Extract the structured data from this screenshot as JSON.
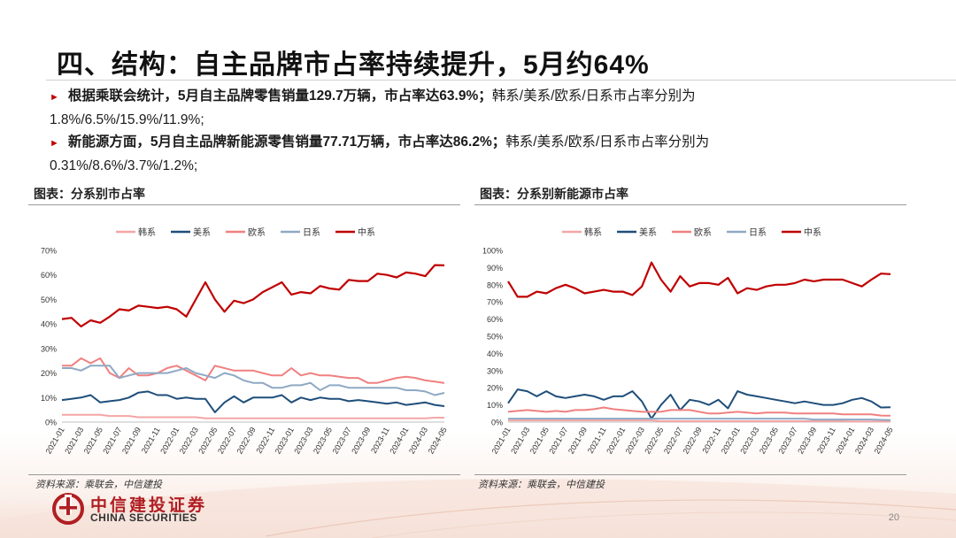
{
  "title": "四、结构：自主品牌市占率持续提升，5月约64%",
  "bullets": [
    {
      "bold": "根据乘联会统计，5月自主品牌零售销量129.7万辆，市占率达63.9%；",
      "normal_1": "韩系/美系/欧系/日系市占率分别为",
      "normal_2": "1.8%/6.5%/15.9%/11.9%;"
    },
    {
      "bold": "新能源方面，5月自主品牌新能源零售销量77.71万辆，市占率达86.2%；",
      "normal_1": "韩系/美系/欧系/日系市占率分别为",
      "normal_2": "0.31%/8.6%/3.7%/1.2%;"
    }
  ],
  "left_panel": {
    "title": "图表：分系别市占率",
    "source": "资料来源：乘联会，中信建投"
  },
  "right_panel": {
    "title": "图表：分系别新能源市占率",
    "source": "资料来源：乘联会，中信建投"
  },
  "logo": {
    "cn": "中信建投证券",
    "en": "CHINA SECURITIES",
    "icon": "citic-logo-icon"
  },
  "page_number": "20",
  "colors": {
    "韩系": "#f4a6a6",
    "美系": "#1f4e79",
    "欧系": "#f08080",
    "日系": "#8fa9c4",
    "中系": "#c00000"
  },
  "chart_data": [
    {
      "type": "line",
      "x": [
        "2021-01",
        "2021-02",
        "2021-03",
        "2021-04",
        "2021-05",
        "2021-06",
        "2021-07",
        "2021-08",
        "2021-09",
        "2021-10",
        "2021-11",
        "2021-12",
        "2022-01",
        "2022-02",
        "2022-03",
        "2022-04",
        "2022-05",
        "2022-06",
        "2022-07",
        "2022-08",
        "2022-09",
        "2022-10",
        "2022-11",
        "2022-12",
        "2023-01",
        "2023-02",
        "2023-03",
        "2023-04",
        "2023-05",
        "2023-06",
        "2023-07",
        "2023-08",
        "2023-09",
        "2023-10",
        "2023-11",
        "2023-12",
        "2024-01",
        "2024-02",
        "2024-03",
        "2024-04",
        "2024-05"
      ],
      "x_ticks": [
        "2021-01",
        "2021-03",
        "2021-05",
        "2021-07",
        "2021-09",
        "2021-11",
        "2022-01",
        "2022-03",
        "2022-05",
        "2022-07",
        "2022-09",
        "2022-11",
        "2023-01",
        "2023-03",
        "2023-05",
        "2023-07",
        "2023-09",
        "2023-11",
        "2024-01",
        "2024-03",
        "2024-05"
      ],
      "ylim": [
        0,
        70
      ],
      "y_ticks": [
        "0%",
        "10%",
        "20%",
        "30%",
        "40%",
        "50%",
        "60%",
        "70%"
      ],
      "legend_position": "top",
      "series": [
        {
          "name": "韩系",
          "values": [
            3,
            3,
            3,
            3,
            3,
            2.5,
            2.5,
            2.5,
            2,
            2,
            2,
            2,
            2,
            2,
            2,
            1.5,
            1.5,
            1.5,
            1.5,
            1.5,
            1.5,
            1.5,
            1.5,
            1.5,
            1.5,
            1.5,
            1.5,
            1.5,
            1.5,
            1.5,
            1.5,
            1.5,
            1.5,
            1.5,
            1.5,
            1.5,
            1.5,
            1.5,
            1.5,
            1.8,
            1.8
          ]
        },
        {
          "name": "美系",
          "values": [
            9,
            9.5,
            10,
            11,
            8,
            8.5,
            9,
            10,
            12,
            12.5,
            11,
            11,
            9.5,
            10,
            9.5,
            9.5,
            4,
            8,
            10.5,
            8,
            10,
            10,
            10,
            11,
            8,
            10,
            9,
            10,
            9.5,
            9.5,
            8.5,
            9,
            8.5,
            8,
            7.5,
            8,
            7,
            7.5,
            8,
            7,
            6.5
          ]
        },
        {
          "name": "欧系",
          "values": [
            23,
            23,
            26,
            24,
            26,
            20,
            18,
            22,
            19,
            19,
            20,
            22,
            23,
            21,
            19,
            17,
            23,
            22,
            21,
            21,
            21,
            20,
            19,
            19,
            22,
            19,
            20,
            19,
            19,
            18.5,
            18,
            18,
            16,
            16,
            17,
            18,
            18.5,
            18,
            17,
            16.5,
            15.9
          ]
        },
        {
          "name": "日系",
          "values": [
            22,
            22,
            21,
            23,
            23,
            23,
            18,
            19,
            20,
            20,
            20,
            20,
            21,
            22,
            20,
            19,
            18,
            20,
            19,
            17,
            16,
            16,
            14,
            14,
            15,
            15,
            16,
            13,
            15,
            15,
            14,
            14,
            14,
            14,
            14,
            14,
            13,
            13,
            12.5,
            11,
            11.9
          ]
        },
        {
          "name": "中系",
          "values": [
            42,
            42.5,
            39,
            41.5,
            40.5,
            43,
            46,
            45.5,
            47.5,
            47,
            46.5,
            47,
            46,
            43,
            50,
            57,
            50,
            45,
            49.5,
            48.5,
            50,
            53,
            55,
            57,
            52,
            53,
            52.5,
            55.5,
            54.5,
            54,
            58,
            57.5,
            57.5,
            60.5,
            60,
            59,
            61,
            60.5,
            59.5,
            64,
            63.9
          ]
        }
      ]
    },
    {
      "type": "line",
      "x": [
        "2021-01",
        "2021-02",
        "2021-03",
        "2021-04",
        "2021-05",
        "2021-06",
        "2021-07",
        "2021-08",
        "2021-09",
        "2021-10",
        "2021-11",
        "2021-12",
        "2022-01",
        "2022-02",
        "2022-03",
        "2022-04",
        "2022-05",
        "2022-06",
        "2022-07",
        "2022-08",
        "2022-09",
        "2022-10",
        "2022-11",
        "2022-12",
        "2023-01",
        "2023-02",
        "2023-03",
        "2023-04",
        "2023-05",
        "2023-06",
        "2023-07",
        "2023-08",
        "2023-09",
        "2023-10",
        "2023-11",
        "2023-12",
        "2024-01",
        "2024-02",
        "2024-03",
        "2024-04",
        "2024-05"
      ],
      "x_ticks": [
        "2021-01",
        "2021-03",
        "2021-05",
        "2021-07",
        "2021-09",
        "2021-11",
        "2022-01",
        "2022-03",
        "2022-05",
        "2022-07",
        "2022-09",
        "2022-11",
        "2023-01",
        "2023-03",
        "2023-05",
        "2023-07",
        "2023-09",
        "2023-11",
        "2024-01",
        "2024-03",
        "2024-05"
      ],
      "ylim": [
        0,
        100
      ],
      "y_ticks": [
        "0%",
        "10%",
        "20%",
        "30%",
        "40%",
        "50%",
        "60%",
        "70%",
        "80%",
        "90%",
        "100%"
      ],
      "legend_position": "top",
      "series": [
        {
          "name": "韩系",
          "values": [
            1,
            1,
            1,
            1,
            1,
            1,
            1,
            1,
            1,
            1,
            1,
            1,
            1,
            1,
            1,
            1,
            0.5,
            0.5,
            0.5,
            0.5,
            0.5,
            0.5,
            0.5,
            0.5,
            0.5,
            0.5,
            0.5,
            0.5,
            0.5,
            0.5,
            0.5,
            0.5,
            0.5,
            0.5,
            0.5,
            0.5,
            0.3,
            0.3,
            0.3,
            0.3,
            0.31
          ]
        },
        {
          "name": "美系",
          "values": [
            11,
            19,
            18,
            15,
            18,
            15,
            14,
            15,
            16,
            15,
            13,
            15,
            15,
            18,
            12,
            2,
            10,
            16,
            7,
            13,
            12,
            10,
            13,
            8,
            18,
            16,
            15,
            14,
            13,
            12,
            11,
            12,
            11,
            10,
            10,
            11,
            13,
            14,
            12,
            8.5,
            8.6
          ]
        },
        {
          "name": "欧系",
          "values": [
            6,
            6.5,
            7,
            6.5,
            6,
            6.5,
            6,
            7,
            7,
            7.5,
            8.5,
            7.5,
            7,
            6.5,
            6,
            6,
            6,
            7,
            7,
            7,
            6,
            5,
            5,
            5.5,
            6,
            5.5,
            5,
            5.5,
            5.5,
            5.5,
            5,
            5,
            5,
            5,
            5,
            4.5,
            4.5,
            4.5,
            4.5,
            3.8,
            3.7
          ]
        },
        {
          "name": "日系",
          "values": [
            2,
            2,
            2,
            2,
            2,
            2,
            2,
            2,
            2,
            2,
            2,
            2,
            2,
            2,
            2,
            2,
            2,
            2,
            2,
            2,
            2,
            2,
            2,
            2,
            2,
            2,
            2,
            2,
            2,
            2,
            2,
            2,
            1.5,
            1.5,
            1.5,
            1.5,
            1.5,
            1.5,
            1.5,
            1.3,
            1.2
          ]
        },
        {
          "name": "中系",
          "values": [
            82,
            73,
            73,
            76,
            75,
            78,
            80,
            78,
            75,
            76,
            77,
            76,
            76,
            74,
            79,
            93,
            83,
            76,
            85,
            79,
            81,
            81,
            80,
            84,
            75,
            78,
            77,
            79,
            80,
            80,
            81,
            83,
            82,
            83,
            83,
            83,
            81,
            79,
            83,
            86.5,
            86.2
          ]
        }
      ]
    }
  ]
}
